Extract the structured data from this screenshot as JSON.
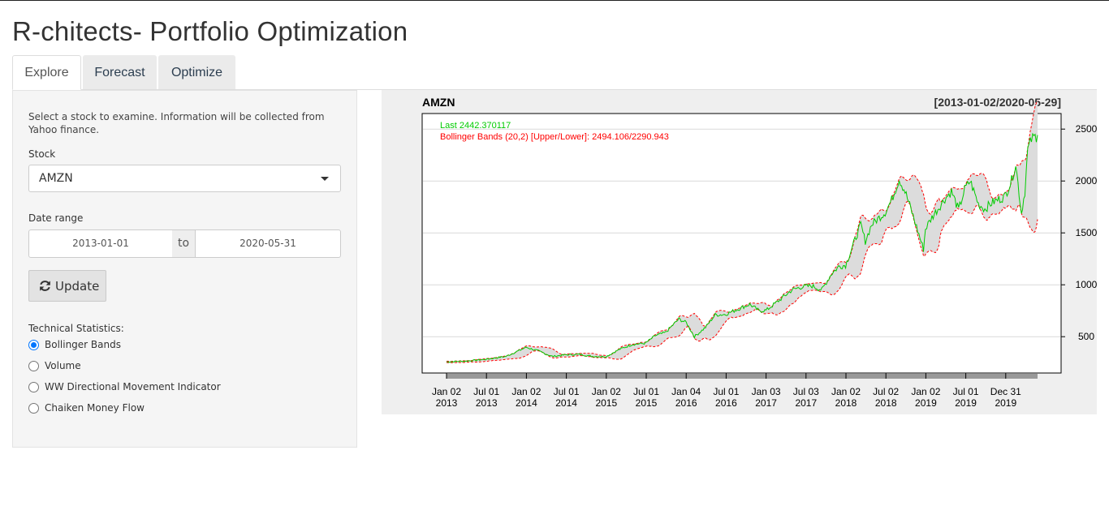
{
  "app": {
    "title": "R-chitects- Portfolio Optimization"
  },
  "tabs": [
    {
      "label": "Explore",
      "active": true
    },
    {
      "label": "Forecast",
      "active": false
    },
    {
      "label": "Optimize",
      "active": false
    }
  ],
  "sidebar": {
    "help_text": "Select a stock to examine. Information will be collected from Yahoo finance.",
    "stock_label": "Stock",
    "stock_value": "AMZN",
    "date_label": "Date range",
    "date_start": "2013-01-01",
    "date_sep": "to",
    "date_end": "2020-05-31",
    "update_label": "Update",
    "tech_label": "Technical Statistics:",
    "tech_options": [
      {
        "label": "Bollinger Bands",
        "checked": true
      },
      {
        "label": "Volume",
        "checked": false
      },
      {
        "label": "WW Directional Movement Indicator",
        "checked": false
      },
      {
        "label": "Chaiken Money Flow",
        "checked": false
      }
    ]
  },
  "colors": {
    "price_line": "#00cc00",
    "bands": "#ff0000",
    "band_fill": "#dcdcdc",
    "chart_bg": "#efefef",
    "tab_active_text": "#555555",
    "tab_text": "#2c3e50"
  },
  "icons": {
    "update": "refresh-icon",
    "select": "chevron-down-icon"
  },
  "chart_data": {
    "type": "line",
    "title": "AMZN",
    "date_range_label": "[2013-01-02/2020-05-29]",
    "legend": [
      "Last 2442.370117",
      "Bollinger Bands (20,2) [Upper/Lower]: 2494.106/2290.943"
    ],
    "x_tick_labels": [
      [
        "Jan 02",
        "2013"
      ],
      [
        "Jul 01",
        "2013"
      ],
      [
        "Jan 02",
        "2014"
      ],
      [
        "Jul 01",
        "2014"
      ],
      [
        "Jan 02",
        "2015"
      ],
      [
        "Jul 01",
        "2015"
      ],
      [
        "Jan 04",
        "2016"
      ],
      [
        "Jul 01",
        "2016"
      ],
      [
        "Jan 03",
        "2017"
      ],
      [
        "Jul 03",
        "2017"
      ],
      [
        "Jan 02",
        "2018"
      ],
      [
        "Jul 02",
        "2018"
      ],
      [
        "Jan 02",
        "2019"
      ],
      [
        "Jul 01",
        "2019"
      ],
      [
        "Dec 31",
        "2019"
      ]
    ],
    "y_ticks": [
      500,
      1000,
      1500,
      2000,
      2500
    ],
    "ylim": [
      150,
      2650
    ],
    "xlim": [
      "2013-01-02",
      "2020-05-29"
    ],
    "grid": true,
    "series": [
      {
        "name": "AMZN",
        "x": [
          "2013-01-02",
          "2013-04-01",
          "2013-07-01",
          "2013-10-01",
          "2014-01-02",
          "2014-03-01",
          "2014-05-01",
          "2014-07-01",
          "2014-09-01",
          "2014-11-01",
          "2015-01-02",
          "2015-03-01",
          "2015-05-01",
          "2015-07-01",
          "2015-08-15",
          "2015-10-01",
          "2015-12-01",
          "2016-01-04",
          "2016-02-10",
          "2016-04-01",
          "2016-05-15",
          "2016-07-01",
          "2016-09-01",
          "2016-10-20",
          "2016-12-01",
          "2017-01-03",
          "2017-03-01",
          "2017-05-01",
          "2017-06-15",
          "2017-08-01",
          "2017-09-15",
          "2017-10-27",
          "2017-12-01",
          "2018-01-02",
          "2018-02-08",
          "2018-03-12",
          "2018-04-02",
          "2018-05-01",
          "2018-07-02",
          "2018-08-01",
          "2018-09-04",
          "2018-10-01",
          "2018-11-01",
          "2018-12-24",
          "2019-01-02",
          "2019-02-01",
          "2019-04-01",
          "2019-05-01",
          "2019-06-03",
          "2019-07-01",
          "2019-07-26",
          "2019-09-01",
          "2019-10-01",
          "2019-11-01",
          "2019-12-31",
          "2020-01-31",
          "2020-02-19",
          "2020-03-16",
          "2020-04-01",
          "2020-04-14",
          "2020-05-01",
          "2020-05-29"
        ],
        "values": [
          257,
          265,
          282,
          310,
          398,
          360,
          310,
          325,
          330,
          310,
          308,
          375,
          425,
          437,
          510,
          540,
          670,
          636,
          500,
          590,
          710,
          715,
          770,
          812,
          750,
          753,
          845,
          950,
          980,
          990,
          950,
          1100,
          1175,
          1190,
          1400,
          1580,
          1420,
          1580,
          1700,
          1820,
          2020,
          1900,
          1700,
          1344,
          1540,
          1650,
          1830,
          1900,
          1720,
          1920,
          2000,
          1780,
          1730,
          1790,
          1850,
          2005,
          2170,
          1689,
          1900,
          2300,
          2400,
          2442
        ]
      }
    ]
  }
}
